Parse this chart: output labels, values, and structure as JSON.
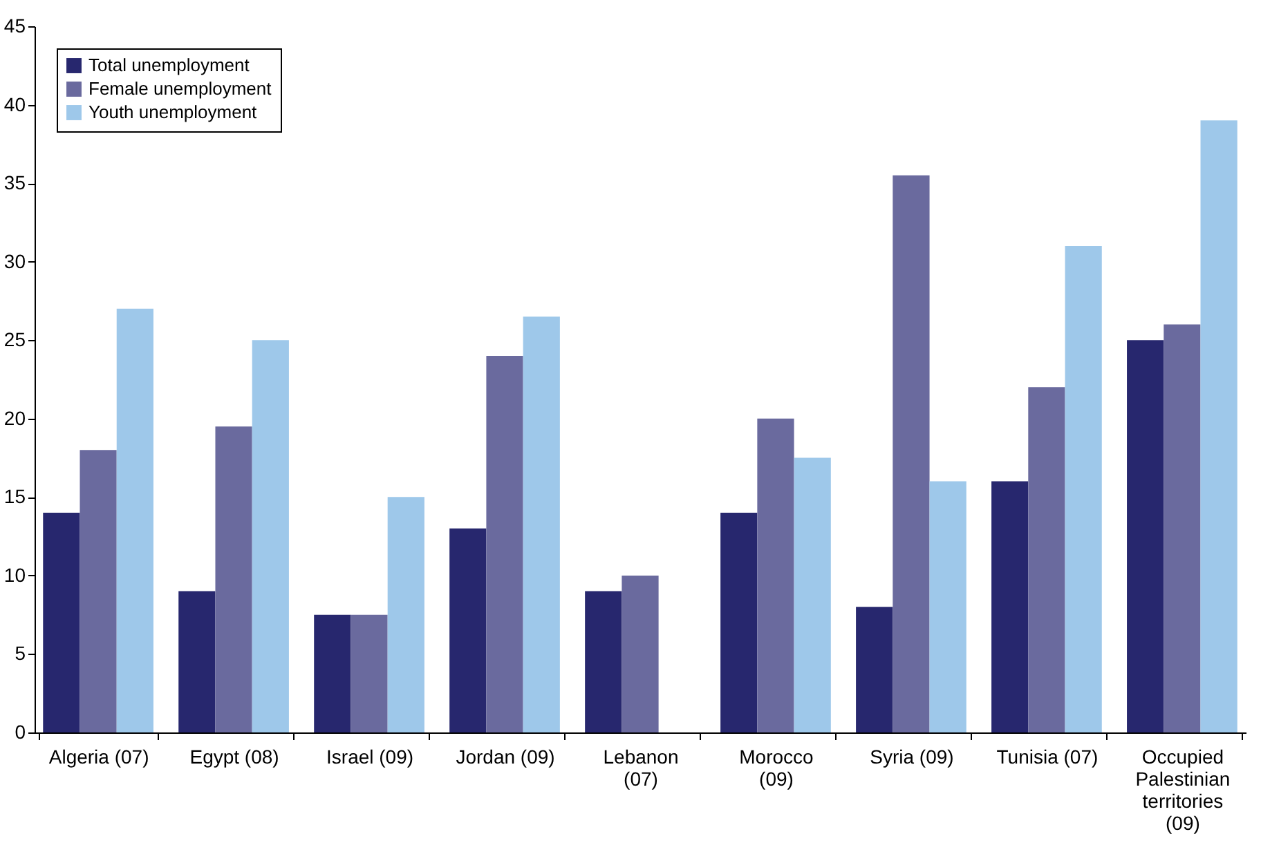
{
  "chart_data": {
    "type": "bar",
    "categories": [
      "Algeria (07)",
      "Egypt (08)",
      "Israel (09)",
      "Jordan (09)",
      "Lebanon (07)",
      "Morocco (09)",
      "Syria (09)",
      "Tunisia (07)",
      "Occupied Palestinian territories (09)"
    ],
    "series": [
      {
        "name": "Total unemployment",
        "color": "#27276e",
        "values": [
          14,
          9,
          7.5,
          13,
          9,
          14,
          8,
          16,
          25
        ]
      },
      {
        "name": "Female unemployment",
        "color": "#6a6a9e",
        "values": [
          18,
          19.5,
          7.5,
          24,
          10,
          20,
          35.5,
          22,
          26
        ]
      },
      {
        "name": "Youth unemployment",
        "color": "#9ec8ea",
        "values": [
          27,
          25,
          15,
          26.5,
          null,
          17.5,
          16,
          31,
          39
        ]
      }
    ],
    "ylim": [
      0,
      45
    ],
    "yticks": [
      0,
      5,
      10,
      15,
      20,
      25,
      30,
      35,
      40,
      45
    ],
    "grid": false,
    "legend": "top left"
  }
}
